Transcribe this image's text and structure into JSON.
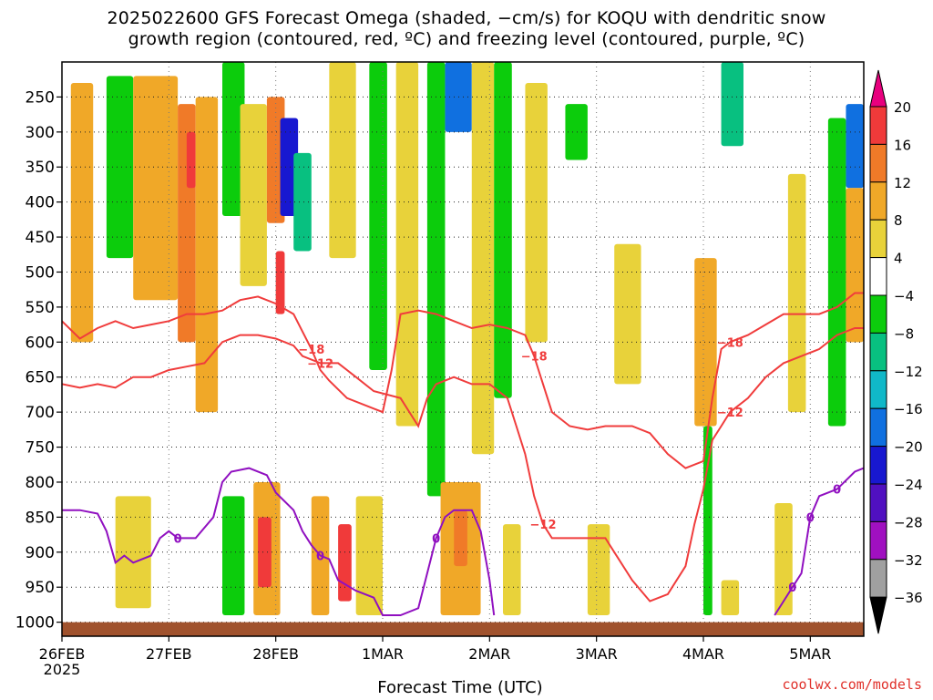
{
  "title_line1": "2025022600 GFS Forecast Omega (shaded, −cm/s) for KOQU with dendritic snow",
  "title_line2": "growth region (contoured, red, ºC) and freezing level (contoured, purple, ºC)",
  "xlabel": "Forecast Time (UTC)",
  "credit": "coolwx.com/models",
  "chart_data": {
    "type": "heatmap",
    "title": "2025022600 GFS Forecast Omega (shaded, −cm/s) for KOQU with dendritic snow growth region (contoured, red, ºC) and freezing level (contoured, purple, ºC)",
    "xlabel": "Forecast Time (UTC)",
    "ylabel": "",
    "x_ticks": [
      {
        "label": "26FEB",
        "sub": "2025",
        "hour": 0
      },
      {
        "label": "27FEB",
        "hour": 24
      },
      {
        "label": "28FEB",
        "hour": 48
      },
      {
        "label": "1MAR",
        "hour": 72
      },
      {
        "label": "2MAR",
        "hour": 96
      },
      {
        "label": "3MAR",
        "hour": 120
      },
      {
        "label": "4MAR",
        "hour": 144
      },
      {
        "label": "5MAR",
        "hour": 168
      }
    ],
    "xlim": [
      0,
      180
    ],
    "y_ticks": [
      250,
      300,
      350,
      400,
      450,
      500,
      550,
      600,
      650,
      700,
      750,
      800,
      850,
      900,
      950,
      1000
    ],
    "ylim": [
      200,
      1020
    ],
    "colorbar": {
      "labels": [
        "20",
        "16",
        "12",
        "8",
        "4",
        "−4",
        "−8",
        "−12",
        "−16",
        "−20",
        "−24",
        "−28",
        "−32",
        "−36"
      ],
      "colors": [
        "#e8007e",
        "#f03a3a",
        "#f07a28",
        "#f0a828",
        "#e8d23a",
        "#ffffff",
        "#0ccc0c",
        "#08c080",
        "#10b8c8",
        "#1070e0",
        "#1818d0",
        "#5010c0",
        "#a010c0",
        "#a0a0a0",
        "#000000"
      ]
    },
    "terrain_color": "#a0522d",
    "omega_cells": [
      {
        "t0": 2,
        "t1": 7,
        "p0": 230,
        "p1": 600,
        "v": 8
      },
      {
        "t0": 10,
        "t1": 16,
        "p0": 220,
        "p1": 480,
        "v": -6
      },
      {
        "t0": 16,
        "t1": 26,
        "p0": 220,
        "p1": 540,
        "v": 8
      },
      {
        "t0": 26,
        "t1": 30,
        "p0": 260,
        "p1": 600,
        "v": 12
      },
      {
        "t0": 28,
        "t1": 30,
        "p0": 300,
        "p1": 380,
        "v": 18
      },
      {
        "t0": 30,
        "t1": 35,
        "p0": 250,
        "p1": 700,
        "v": 10
      },
      {
        "t0": 36,
        "t1": 41,
        "p0": 200,
        "p1": 420,
        "v": -7
      },
      {
        "t0": 40,
        "t1": 46,
        "p0": 260,
        "p1": 520,
        "v": 6
      },
      {
        "t0": 46,
        "t1": 50,
        "p0": 250,
        "p1": 430,
        "v": 12
      },
      {
        "t0": 49,
        "t1": 53,
        "p0": 280,
        "p1": 420,
        "v": -22
      },
      {
        "t0": 52,
        "t1": 56,
        "p0": 330,
        "p1": 470,
        "v": -10
      },
      {
        "t0": 48,
        "t1": 50,
        "p0": 470,
        "p1": 560,
        "v": 18
      },
      {
        "t0": 60,
        "t1": 66,
        "p0": 200,
        "p1": 480,
        "v": 7
      },
      {
        "t0": 69,
        "t1": 73,
        "p0": 200,
        "p1": 640,
        "v": -7
      },
      {
        "t0": 75,
        "t1": 80,
        "p0": 200,
        "p1": 720,
        "v": 6
      },
      {
        "t0": 82,
        "t1": 86,
        "p0": 200,
        "p1": 820,
        "v": -6
      },
      {
        "t0": 86,
        "t1": 92,
        "p0": 200,
        "p1": 300,
        "v": -16
      },
      {
        "t0": 92,
        "t1": 97,
        "p0": 200,
        "p1": 760,
        "v": 7
      },
      {
        "t0": 97,
        "t1": 101,
        "p0": 200,
        "p1": 680,
        "v": -7
      },
      {
        "t0": 104,
        "t1": 109,
        "p0": 230,
        "p1": 600,
        "v": 5
      },
      {
        "t0": 113,
        "t1": 118,
        "p0": 260,
        "p1": 340,
        "v": -6
      },
      {
        "t0": 124,
        "t1": 130,
        "p0": 460,
        "p1": 660,
        "v": 6
      },
      {
        "t0": 142,
        "t1": 147,
        "p0": 480,
        "p1": 720,
        "v": 10
      },
      {
        "t0": 148,
        "t1": 153,
        "p0": 200,
        "p1": 320,
        "v": -10
      },
      {
        "t0": 163,
        "t1": 167,
        "p0": 360,
        "p1": 700,
        "v": 7
      },
      {
        "t0": 172,
        "t1": 176,
        "p0": 280,
        "p1": 720,
        "v": -7
      },
      {
        "t0": 176,
        "t1": 180,
        "p0": 260,
        "p1": 380,
        "v": -18
      },
      {
        "t0": 176,
        "t1": 180,
        "p0": 380,
        "p1": 600,
        "v": 9
      },
      {
        "t0": 12,
        "t1": 20,
        "p0": 820,
        "p1": 980,
        "v": 6
      },
      {
        "t0": 36,
        "t1": 41,
        "p0": 820,
        "p1": 990,
        "v": -6
      },
      {
        "t0": 43,
        "t1": 49,
        "p0": 800,
        "p1": 990,
        "v": 10
      },
      {
        "t0": 44,
        "t1": 47,
        "p0": 850,
        "p1": 950,
        "v": 18
      },
      {
        "t0": 56,
        "t1": 60,
        "p0": 820,
        "p1": 990,
        "v": 8
      },
      {
        "t0": 62,
        "t1": 65,
        "p0": 860,
        "p1": 970,
        "v": 16
      },
      {
        "t0": 66,
        "t1": 72,
        "p0": 820,
        "p1": 990,
        "v": 6
      },
      {
        "t0": 85,
        "t1": 94,
        "p0": 800,
        "p1": 990,
        "v": 9
      },
      {
        "t0": 88,
        "t1": 91,
        "p0": 840,
        "p1": 920,
        "v": 14
      },
      {
        "t0": 99,
        "t1": 103,
        "p0": 860,
        "p1": 990,
        "v": 6
      },
      {
        "t0": 118,
        "t1": 123,
        "p0": 860,
        "p1": 990,
        "v": 6
      },
      {
        "t0": 144,
        "t1": 146,
        "p0": 720,
        "p1": 990,
        "v": -6
      },
      {
        "t0": 148,
        "t1": 152,
        "p0": 940,
        "p1": 990,
        "v": 6
      },
      {
        "t0": 160,
        "t1": 164,
        "p0": 830,
        "p1": 990,
        "v": 6
      }
    ],
    "contours_red": [
      {
        "label": "−18",
        "points": [
          [
            0,
            570
          ],
          [
            4,
            595
          ],
          [
            8,
            580
          ],
          [
            12,
            570
          ],
          [
            16,
            580
          ],
          [
            20,
            575
          ],
          [
            24,
            570
          ],
          [
            28,
            560
          ],
          [
            32,
            560
          ],
          [
            36,
            555
          ],
          [
            40,
            540
          ],
          [
            44,
            535
          ],
          [
            48,
            545
          ],
          [
            52,
            560
          ],
          [
            54,
            585
          ],
          [
            56,
            610
          ],
          [
            58,
            640
          ],
          [
            60,
            655
          ],
          [
            64,
            680
          ],
          [
            70,
            695
          ],
          [
            72,
            700
          ],
          [
            74,
            640
          ],
          [
            76,
            560
          ],
          [
            80,
            555
          ],
          [
            84,
            560
          ],
          [
            88,
            570
          ],
          [
            92,
            580
          ],
          [
            96,
            575
          ],
          [
            100,
            580
          ],
          [
            104,
            590
          ],
          [
            106,
            620
          ],
          [
            108,
            660
          ],
          [
            110,
            700
          ],
          [
            114,
            720
          ],
          [
            118,
            725
          ],
          [
            122,
            720
          ],
          [
            128,
            720
          ],
          [
            132,
            730
          ],
          [
            136,
            760
          ],
          [
            140,
            780
          ],
          [
            144,
            770
          ],
          [
            146,
            680
          ],
          [
            148,
            610
          ],
          [
            150,
            600
          ],
          [
            154,
            590
          ],
          [
            158,
            575
          ],
          [
            162,
            560
          ],
          [
            166,
            560
          ],
          [
            170,
            560
          ],
          [
            174,
            550
          ],
          [
            178,
            530
          ],
          [
            180,
            530
          ]
        ]
      },
      {
        "label": "−12",
        "points": [
          [
            0,
            660
          ],
          [
            4,
            665
          ],
          [
            8,
            660
          ],
          [
            12,
            665
          ],
          [
            16,
            650
          ],
          [
            20,
            650
          ],
          [
            24,
            640
          ],
          [
            28,
            635
          ],
          [
            32,
            630
          ],
          [
            36,
            600
          ],
          [
            40,
            590
          ],
          [
            44,
            590
          ],
          [
            48,
            595
          ],
          [
            52,
            605
          ],
          [
            54,
            620
          ],
          [
            58,
            630
          ],
          [
            62,
            630
          ],
          [
            66,
            650
          ],
          [
            70,
            670
          ],
          [
            76,
            680
          ],
          [
            78,
            700
          ],
          [
            80,
            720
          ],
          [
            82,
            680
          ],
          [
            84,
            660
          ],
          [
            88,
            650
          ],
          [
            92,
            660
          ],
          [
            96,
            660
          ],
          [
            100,
            680
          ],
          [
            102,
            720
          ],
          [
            104,
            760
          ],
          [
            106,
            820
          ],
          [
            108,
            860
          ],
          [
            110,
            880
          ],
          [
            114,
            880
          ],
          [
            118,
            880
          ],
          [
            122,
            880
          ],
          [
            124,
            900
          ],
          [
            128,
            940
          ],
          [
            132,
            970
          ],
          [
            136,
            960
          ],
          [
            140,
            920
          ],
          [
            142,
            860
          ],
          [
            144,
            810
          ],
          [
            146,
            740
          ],
          [
            148,
            720
          ],
          [
            150,
            700
          ],
          [
            154,
            680
          ],
          [
            158,
            650
          ],
          [
            162,
            630
          ],
          [
            166,
            620
          ],
          [
            170,
            610
          ],
          [
            174,
            590
          ],
          [
            178,
            580
          ],
          [
            180,
            580
          ]
        ]
      }
    ],
    "contours_purple": [
      {
        "label": "0",
        "points": [
          [
            0,
            840
          ],
          [
            4,
            840
          ],
          [
            8,
            845
          ],
          [
            10,
            870
          ],
          [
            12,
            915
          ],
          [
            14,
            905
          ],
          [
            16,
            915
          ],
          [
            20,
            905
          ],
          [
            22,
            880
          ],
          [
            24,
            870
          ],
          [
            26,
            880
          ],
          [
            30,
            880
          ],
          [
            34,
            850
          ],
          [
            36,
            800
          ],
          [
            38,
            785
          ],
          [
            42,
            780
          ],
          [
            46,
            790
          ],
          [
            48,
            815
          ],
          [
            52,
            840
          ],
          [
            54,
            870
          ],
          [
            56,
            890
          ],
          [
            58,
            905
          ],
          [
            60,
            910
          ],
          [
            62,
            940
          ],
          [
            66,
            955
          ],
          [
            70,
            965
          ],
          [
            72,
            990
          ],
          [
            76,
            990
          ],
          [
            80,
            980
          ],
          [
            82,
            930
          ],
          [
            84,
            880
          ],
          [
            86,
            850
          ],
          [
            88,
            840
          ],
          [
            92,
            840
          ],
          [
            94,
            870
          ],
          [
            96,
            940
          ],
          [
            97,
            990
          ]
        ]
      },
      {
        "label": "0",
        "points": [
          [
            160,
            990
          ],
          [
            162,
            970
          ],
          [
            164,
            950
          ],
          [
            166,
            930
          ],
          [
            168,
            850
          ],
          [
            170,
            820
          ],
          [
            174,
            810
          ],
          [
            178,
            785
          ],
          [
            180,
            780
          ]
        ]
      }
    ]
  }
}
